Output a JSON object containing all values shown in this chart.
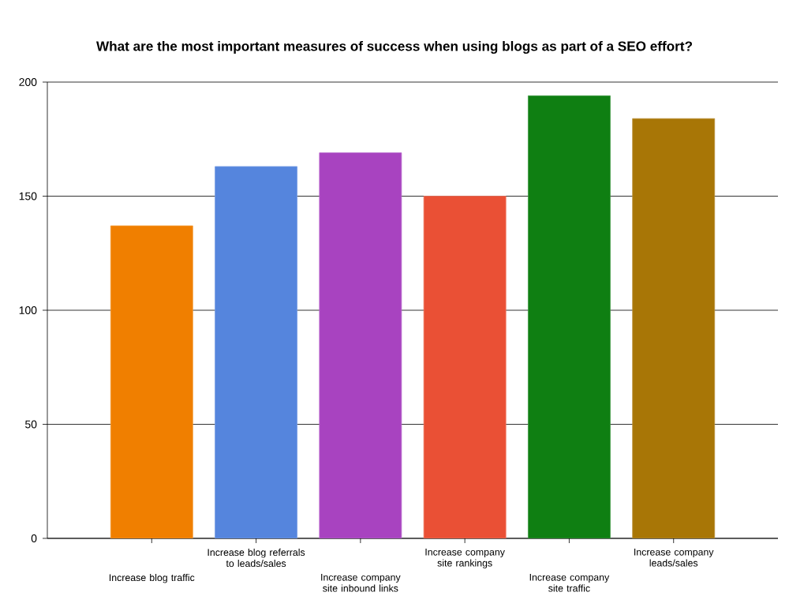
{
  "chart_data": {
    "type": "bar",
    "title": "What are the most important measures of success when using blogs as part of a SEO effort?",
    "categories": [
      "Increase blog traffic",
      "Increase blog referrals to leads/sales",
      "Increase company site inbound links",
      "Increase company site rankings",
      "Increase company site traffic",
      "Increase company leads/sales"
    ],
    "values": [
      137,
      163,
      169,
      150,
      194,
      184
    ],
    "colors": [
      "#f07f00",
      "#5585dd",
      "#a843c0",
      "#ea5035",
      "#0f7f12",
      "#a87606"
    ],
    "ylim": [
      0,
      200
    ],
    "yticks": [
      0,
      50,
      100,
      150,
      200
    ],
    "grid": "y"
  }
}
